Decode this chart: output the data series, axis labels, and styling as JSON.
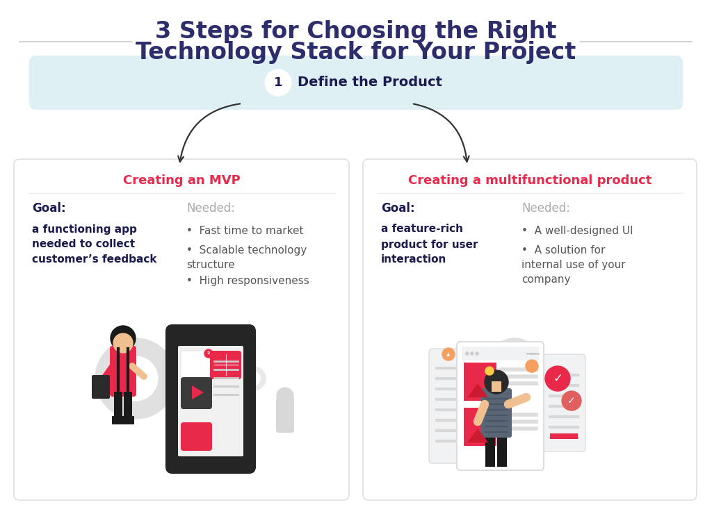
{
  "title_line1": "3 Steps for Choosing the Right",
  "title_line2": "Technology Stack for Your Project",
  "title_color": "#2d2d6b",
  "title_fontsize": 24,
  "step_bg_color": "#dff0f5",
  "step_number": "1",
  "step_label": "Define the Product",
  "step_label_color": "#1a1a4e",
  "left_title": "Creating an MVP",
  "right_title": "Creating a multifunctional product",
  "title_red": "#e8294a",
  "goal_label_color": "#1a1a4e",
  "needed_label_color": "#aaaaaa",
  "left_goal_text_lines": [
    "a functioning app",
    "needed to collect",
    "customer’s feedback"
  ],
  "left_needed_items": [
    "Fast time to market",
    "Scalable technology\nstructure",
    "High responsiveness"
  ],
  "right_goal_text_lines": [
    "a feature-rich",
    "product for user",
    "interaction"
  ],
  "right_needed_items": [
    "A well-designed UI",
    "A solution for\ninternal use of your\ncompany"
  ],
  "goal_text_color": "#1a1a4e",
  "needed_text_color": "#555555",
  "bg_color": "#ffffff",
  "arrow_color": "#333333",
  "panel_edge_color": "#e0e0e0",
  "line_color": "#cccccc",
  "gear_color": "#e0e0e0",
  "phone_dark": "#252525",
  "icon_red": "#e8294a",
  "person_red": "#e8294a",
  "skin_color": "#f0c090",
  "hair_color": "#1a1a1a",
  "check_color": "#e8294a",
  "dash_gray": "#6a7a8a",
  "panel_gray": "#e8e8e8"
}
